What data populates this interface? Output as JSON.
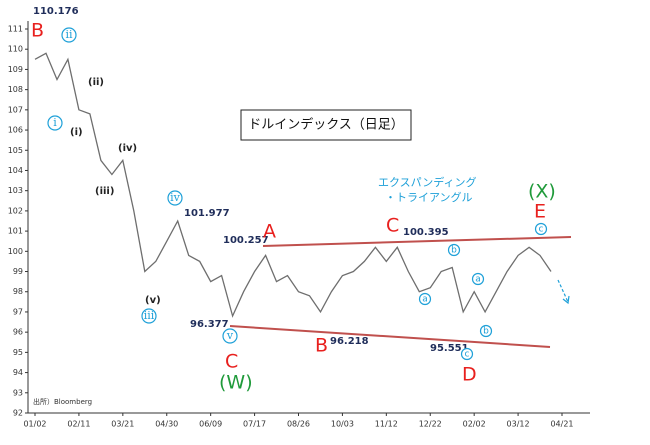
{
  "chart_data": {
    "type": "line",
    "title": "ドルインデックス（日足）",
    "categories": [
      "01/02",
      null,
      null,
      null,
      "02/11",
      null,
      null,
      null,
      "03/21",
      null,
      null,
      null,
      "04/30",
      null,
      null,
      null,
      "06/09",
      null,
      null,
      null,
      "07/17",
      null,
      null,
      null,
      "08/26",
      null,
      null,
      null,
      "10/03",
      null,
      null,
      null,
      "11/12",
      null,
      null,
      null,
      "12/22",
      null,
      null,
      null,
      "02/02",
      null,
      null,
      null,
      "03/12",
      null,
      null,
      null,
      "04/21"
    ],
    "values": [
      109.5,
      109.8,
      108.5,
      109.5,
      107,
      106.8,
      104.5,
      103.8,
      104.5,
      102,
      99,
      99.5,
      100.5,
      101.5,
      99.8,
      99.5,
      98.5,
      98.8,
      96.8,
      98,
      99,
      99.8,
      98.5,
      98.8,
      98,
      97.8,
      97,
      98,
      98.8,
      99,
      99.5,
      100.2,
      99.5,
      100.2,
      99,
      98,
      98.2,
      99,
      99.2,
      97,
      98,
      97,
      98,
      99,
      99.8,
      100.2,
      99.8,
      99,
      null
    ],
    "color": "#6e6e6e",
    "ylim": [
      92,
      111
    ],
    "yticks": [
      92,
      93,
      94,
      95,
      96,
      97,
      98,
      99,
      100,
      101,
      102,
      103,
      104,
      105,
      106,
      107,
      108,
      109,
      110,
      111
    ],
    "annotations": [
      "110.176",
      "B",
      "ii",
      "i",
      "(i)",
      "(ii)",
      "(iii)",
      "(iv)",
      "(v)",
      "iii",
      "iv",
      "101.977",
      "v",
      "100.257",
      "A",
      "96.377",
      "C",
      "(W)",
      "96.218",
      "B",
      "C",
      "100.395",
      "95.551",
      "D",
      "(X)",
      "E",
      "c",
      "b",
      "a",
      "b",
      "c",
      "a",
      "エクスパンディング",
      "・トライアングル",
      "出所）Bloomberg"
    ]
  }
}
